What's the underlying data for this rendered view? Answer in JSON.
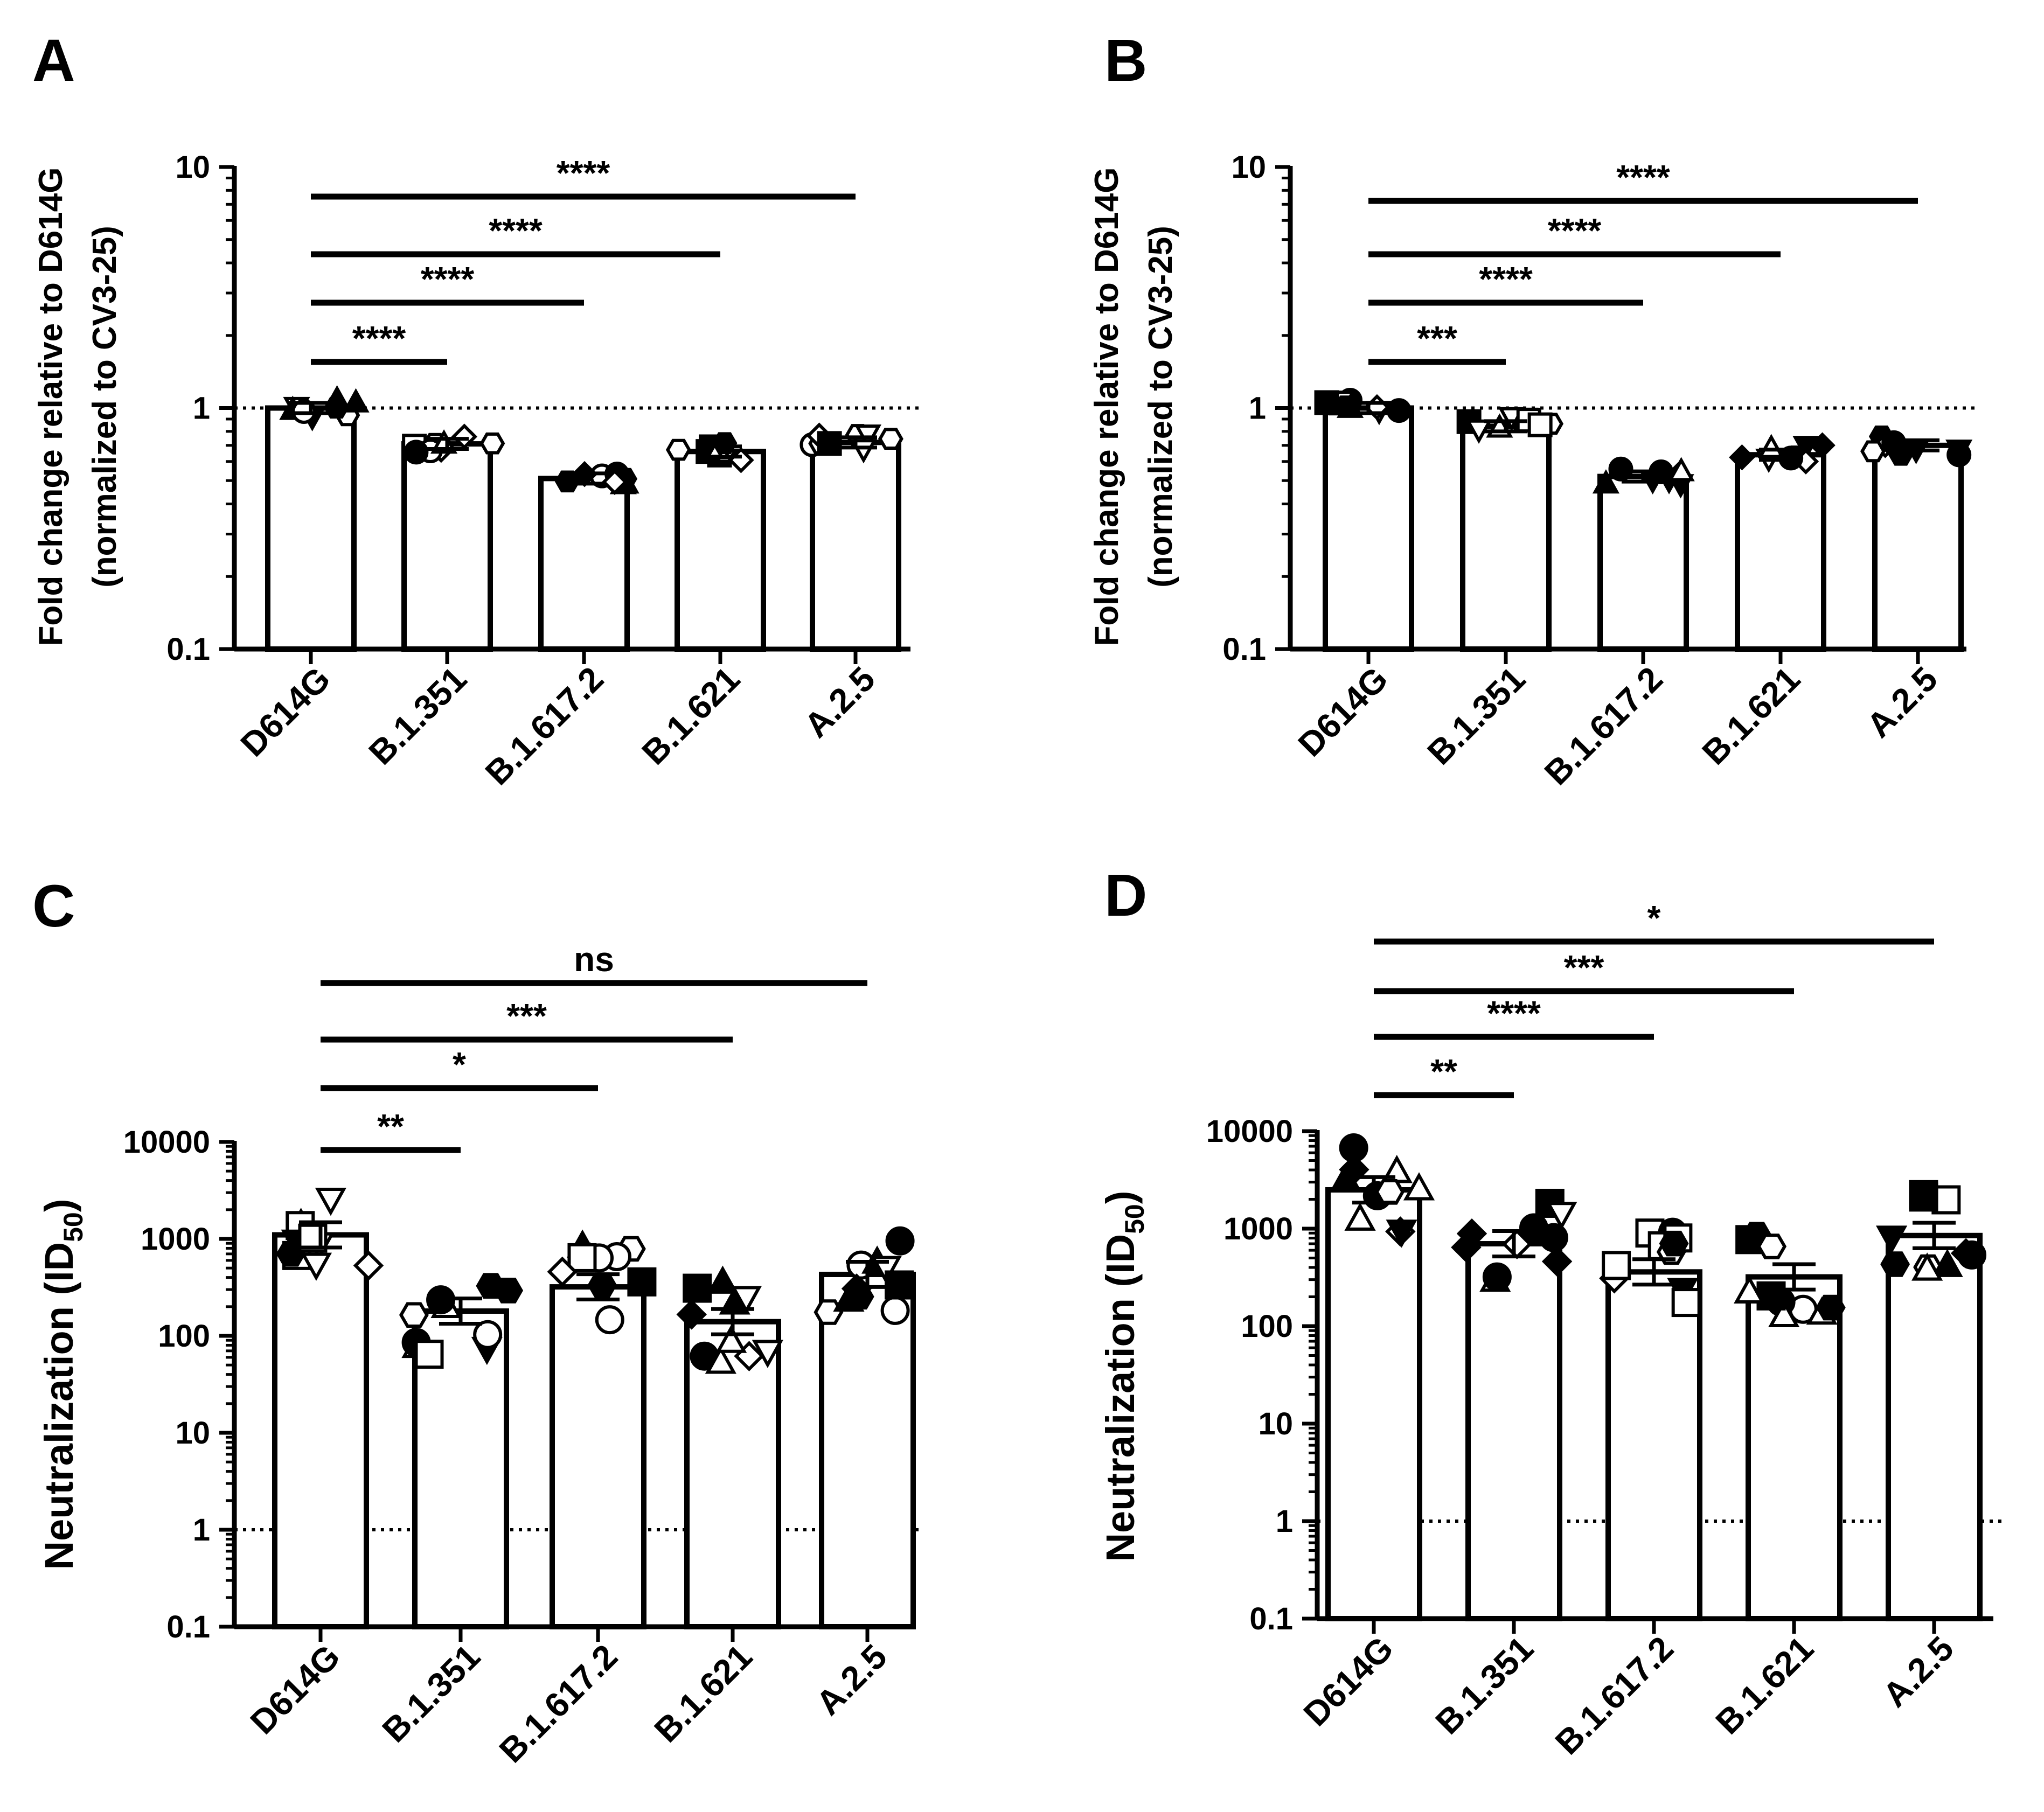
{
  "chart_data": [
    {
      "panel": "A",
      "type": "bar",
      "scale": "log",
      "ylabel_lines": [
        "Fold change relative to D614G",
        "(normalized to CV3-25)"
      ],
      "categories": [
        "D614G",
        "B.1.351",
        "B.1.617.2",
        "B.1.621",
        "A.2.5"
      ],
      "values": [
        1.0,
        0.71,
        0.51,
        0.66,
        0.72
      ],
      "ylim": [
        0.1,
        10
      ],
      "yticks": [
        "0.1",
        "1",
        "10"
      ],
      "reference_line": 1,
      "comparisons": [
        {
          "from": "D614G",
          "to": "B.1.351",
          "label": "****"
        },
        {
          "from": "D614G",
          "to": "B.1.617.2",
          "label": "****"
        },
        {
          "from": "D614G",
          "to": "B.1.621",
          "label": "****"
        },
        {
          "from": "D614G",
          "to": "A.2.5",
          "label": "****"
        }
      ]
    },
    {
      "panel": "B",
      "type": "bar",
      "scale": "log",
      "ylabel_lines": [
        "Fold change relative to D614G",
        "(normalized to CV3-25)"
      ],
      "categories": [
        "D614G",
        "B.1.351",
        "B.1.617.2",
        "B.1.621",
        "A.2.5"
      ],
      "values": [
        1.0,
        0.84,
        0.52,
        0.64,
        0.7
      ],
      "ylim": [
        0.1,
        10
      ],
      "yticks": [
        "0.1",
        "1",
        "10"
      ],
      "reference_line": 1,
      "comparisons": [
        {
          "from": "D614G",
          "to": "B.1.351",
          "label": "***"
        },
        {
          "from": "D614G",
          "to": "B.1.617.2",
          "label": "****"
        },
        {
          "from": "D614G",
          "to": "B.1.621",
          "label": "****"
        },
        {
          "from": "D614G",
          "to": "A.2.5",
          "label": "****"
        }
      ]
    },
    {
      "panel": "C",
      "type": "bar",
      "scale": "log",
      "ylabel_main": "Neutralization (ID",
      "ylabel_sub": "50",
      "ylabel_end": ")",
      "categories": [
        "D614G",
        "B.1.351",
        "B.1.617.2",
        "B.1.621",
        "A.2.5"
      ],
      "values": [
        1100,
        180,
        320,
        140,
        430
      ],
      "ylim": [
        0.1,
        10000
      ],
      "yticks": [
        "0.1",
        "1",
        "10",
        "100",
        "1000",
        "10000"
      ],
      "reference_line": 1,
      "comparisons": [
        {
          "from": "D614G",
          "to": "B.1.351",
          "label": "**"
        },
        {
          "from": "D614G",
          "to": "B.1.617.2",
          "label": "*"
        },
        {
          "from": "D614G",
          "to": "B.1.621",
          "label": "***"
        },
        {
          "from": "D614G",
          "to": "A.2.5",
          "label": "ns"
        }
      ]
    },
    {
      "panel": "D",
      "type": "bar",
      "scale": "log",
      "ylabel_main": "Neutralization (ID",
      "ylabel_sub": "50",
      "ylabel_end": ")",
      "categories": [
        "D614G",
        "B.1.351",
        "B.1.617.2",
        "B.1.621",
        "A.2.5"
      ],
      "values": [
        2500,
        700,
        360,
        320,
        850
      ],
      "ylim": [
        0.1,
        10000
      ],
      "yticks": [
        "0.1",
        "1",
        "10",
        "100",
        "1000",
        "10000"
      ],
      "reference_line": 1,
      "comparisons": [
        {
          "from": "D614G",
          "to": "B.1.351",
          "label": "**"
        },
        {
          "from": "D614G",
          "to": "B.1.617.2",
          "label": "****"
        },
        {
          "from": "D614G",
          "to": "B.1.621",
          "label": "***"
        },
        {
          "from": "D614G",
          "to": "A.2.5",
          "label": "*"
        }
      ]
    }
  ]
}
